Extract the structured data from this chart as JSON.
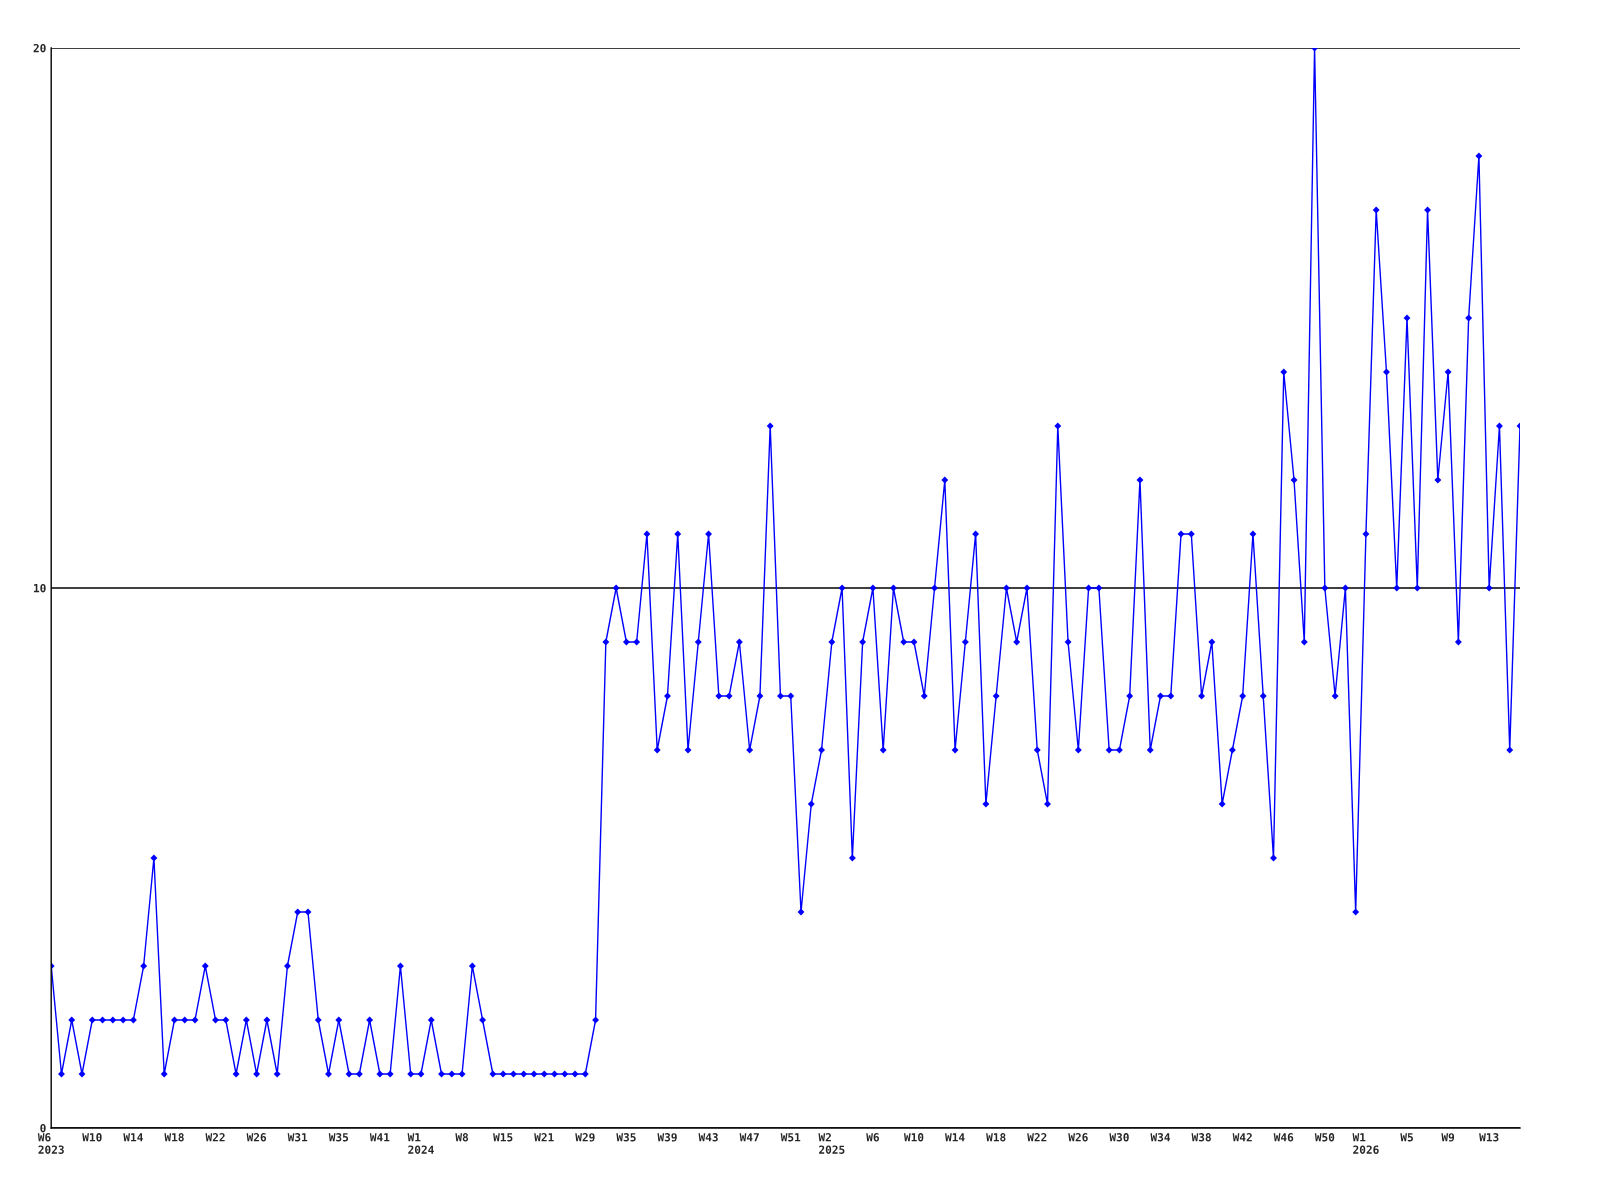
{
  "chart_data": {
    "type": "line",
    "categories": [
      "W6\n2023",
      null,
      null,
      null,
      "W10",
      null,
      null,
      null,
      "W14",
      null,
      null,
      null,
      "W18",
      null,
      null,
      null,
      "W22",
      null,
      null,
      null,
      "W26",
      null,
      null,
      null,
      "W31",
      null,
      null,
      null,
      "W35",
      null,
      null,
      null,
      "W41",
      null,
      null,
      null,
      "W1\n2024",
      null,
      null,
      null,
      "W8",
      null,
      null,
      null,
      "W15",
      null,
      null,
      null,
      "W21",
      null,
      null,
      null,
      "W29",
      null,
      null,
      null,
      "W35",
      null,
      null,
      null,
      "W39",
      null,
      null,
      null,
      "W43",
      null,
      null,
      null,
      "W47",
      null,
      null,
      null,
      "W51",
      null,
      null,
      null,
      "W2\n2025",
      null,
      null,
      null,
      "W6",
      null,
      null,
      null,
      "W10",
      null,
      null,
      null,
      "W14",
      null,
      null,
      null,
      "W18",
      null,
      null,
      null,
      "W22",
      null,
      null,
      null,
      "W26",
      null,
      null,
      null,
      "W30",
      null,
      null,
      null,
      "W34",
      null,
      null,
      null,
      "W38",
      null,
      null,
      null,
      "W42",
      null,
      null,
      null,
      "W46",
      null,
      null,
      null,
      "W50",
      null,
      null,
      null,
      "W1\n2026",
      null,
      null,
      null,
      "W5",
      null,
      null,
      null,
      "W9",
      null,
      null,
      null,
      "W13",
      null,
      null,
      null
    ],
    "series": [
      {
        "color": "#0000ff",
        "values": [
          3,
          1,
          2,
          1,
          2,
          2,
          2,
          2,
          2,
          3,
          5,
          1,
          2,
          2,
          2,
          3,
          2,
          2,
          1,
          2,
          1,
          2,
          1,
          3,
          4,
          4,
          2,
          1,
          2,
          1,
          1,
          2,
          1,
          1,
          3,
          1,
          1,
          2,
          1,
          1,
          1,
          3,
          2,
          1,
          1,
          1,
          1,
          1,
          1,
          1,
          1,
          1,
          1,
          2,
          9,
          10,
          9,
          9,
          11,
          7,
          8,
          11,
          7,
          9,
          11,
          8,
          8,
          9,
          7,
          8,
          13,
          8,
          8,
          4,
          6,
          7,
          9,
          10,
          5,
          9,
          10,
          7,
          10,
          9,
          9,
          8,
          10,
          12,
          7,
          9,
          11,
          6,
          8,
          10,
          9,
          10,
          7,
          6,
          13,
          9,
          7,
          10,
          10,
          7,
          7,
          8,
          12,
          7,
          8,
          8,
          11,
          11,
          8,
          9,
          6,
          7,
          8,
          11,
          8,
          5,
          14,
          12,
          9,
          20,
          10,
          8,
          10,
          4,
          11,
          17,
          14,
          10,
          15,
          10,
          17,
          12,
          14,
          9,
          15,
          18,
          10,
          13,
          7,
          13
        ]
      }
    ],
    "ylim": [
      0,
      20
    ],
    "yticks": [
      0,
      10,
      20
    ],
    "grid": "y",
    "marker": "diamond",
    "line_style": "solid"
  }
}
